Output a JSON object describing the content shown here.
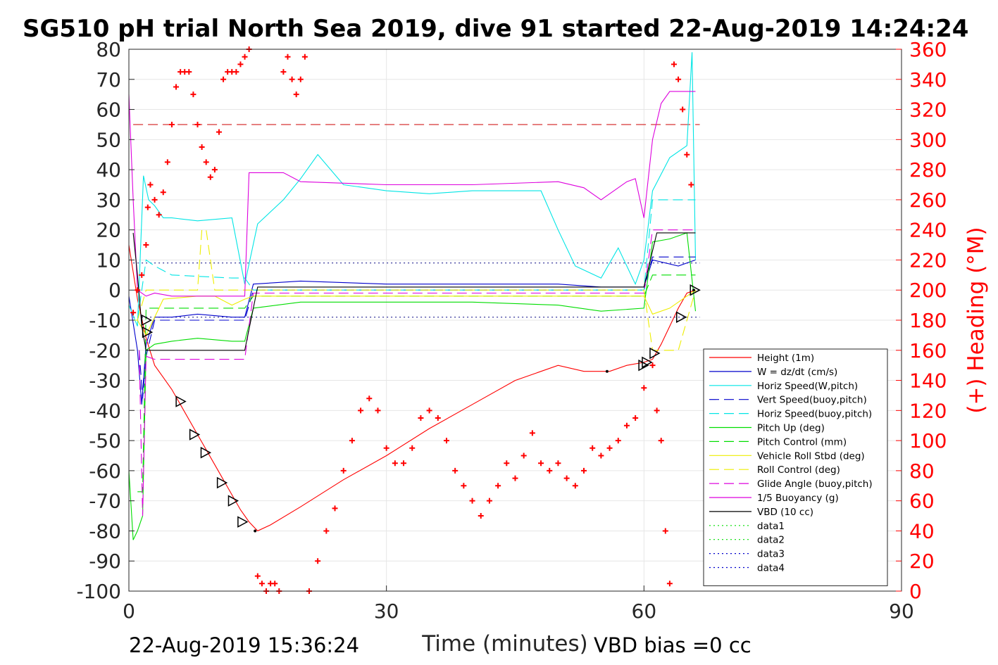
{
  "chart_data": {
    "type": "line",
    "title": "SG510 pH trial North Sea 2019, dive 91 started 22-Aug-2019 14:24:24",
    "xlabel": "Time (minutes)",
    "ylabel_right": "(+) Heading (°M)",
    "xlim": [
      0,
      90
    ],
    "ylim_left": [
      -100,
      80
    ],
    "ylim_right": [
      0,
      360
    ],
    "x_ticks": [
      "0",
      "30",
      "60",
      "90"
    ],
    "y_ticks_left": [
      "80",
      "70",
      "60",
      "50",
      "40",
      "30",
      "20",
      "10",
      "0",
      "-10",
      "-20",
      "-30",
      "-40",
      "-50",
      "-60",
      "-70",
      "-80",
      "-90",
      "-100"
    ],
    "y_ticks_right": [
      "360",
      "340",
      "320",
      "300",
      "280",
      "260",
      "240",
      "220",
      "200",
      "180",
      "160",
      "140",
      "120",
      "100",
      "80",
      "60",
      "40",
      "20",
      "0"
    ],
    "grid": true,
    "legend_position": "bottom-right",
    "footer_left": "22-Aug-2019 15:36:24",
    "footer_right": "VBD bias =0 cc",
    "series": [
      {
        "name": "Height (1m)",
        "color": "#ff0000",
        "style": "solid",
        "x": [
          0.0,
          1.0,
          2.0,
          3.0,
          4.0,
          5.0,
          6.0,
          8.0,
          10.0,
          12.0,
          13.0,
          14.0,
          15.0,
          16.5,
          20,
          25,
          30,
          35,
          40,
          45,
          50,
          53,
          56,
          58,
          60,
          61,
          62,
          63,
          64,
          65,
          66
        ],
        "y": [
          15,
          -3,
          -16,
          -25,
          -29,
          -33,
          -38,
          -48,
          -58,
          -68,
          -73,
          -77,
          -80,
          -78,
          -72,
          -63,
          -55,
          -46,
          -38,
          -30,
          -25,
          -27,
          -27,
          -25,
          -24,
          -23,
          -18,
          -12,
          -6,
          -1,
          0
        ]
      },
      {
        "name": "W = dz/dt (cm/s)",
        "color": "#0000cc",
        "style": "solid",
        "x": [
          0.0,
          1.0,
          1.5,
          2.0,
          3.0,
          5.0,
          8.0,
          12.0,
          13.5,
          14.5,
          20,
          30,
          40,
          50,
          55,
          58,
          60,
          61,
          64,
          66
        ],
        "y": [
          -2,
          -20,
          -38,
          -18,
          -9,
          -9,
          -8,
          -9,
          -9,
          2,
          3,
          2,
          2,
          2,
          1,
          1,
          1,
          10,
          8,
          10
        ]
      },
      {
        "name": "Horiz Speed(W,pitch)",
        "color": "#00e5e5",
        "style": "solid",
        "x": [
          0.0,
          1.0,
          1.7,
          2.3,
          3.0,
          4.0,
          5.0,
          8.0,
          12.0,
          13.5,
          15.0,
          18.0,
          20.0,
          22.0,
          25.0,
          30.0,
          35.0,
          40.0,
          45.0,
          48.0,
          50.0,
          52.0,
          55.0,
          57.0,
          59.0,
          60.0,
          61.0,
          63.0,
          65.0,
          65.6,
          66.0
        ],
        "y": [
          -5,
          -12,
          38,
          30,
          28,
          24,
          24,
          23,
          24,
          2,
          22,
          30,
          37,
          45,
          35,
          33,
          32,
          33,
          33,
          33,
          20,
          8,
          4,
          14,
          2,
          10,
          33,
          44,
          48,
          79,
          10
        ]
      },
      {
        "name": "Vert Speed(buoy,pitch)",
        "color": "#0000cc",
        "style": "dashed",
        "x": [
          1.2,
          1.6,
          2.0,
          3.0,
          12.0,
          13.5,
          14.5,
          60.0,
          61.0,
          66.0
        ],
        "y": [
          -20,
          -36,
          -22,
          -10,
          -10,
          -10,
          0,
          0,
          11,
          11
        ]
      },
      {
        "name": "Horiz Speed(buoy,pitch)",
        "color": "#00e5e5",
        "style": "dashed",
        "x": [
          1.0,
          2.0,
          3.0,
          5.0,
          12.0,
          13.5,
          14.5,
          60.0,
          61.0,
          66.0
        ],
        "y": [
          -10,
          10,
          8,
          5,
          4,
          4,
          0,
          0,
          30,
          30
        ]
      },
      {
        "name": "Pitch Up (deg)",
        "color": "#00dd00",
        "style": "solid",
        "x": [
          0.0,
          0.5,
          1.0,
          1.6,
          2.0,
          3.0,
          5.0,
          8.0,
          12.0,
          13.5,
          14.5,
          20,
          30,
          40,
          50,
          55,
          60,
          61,
          63,
          65,
          66
        ],
        "y": [
          -60,
          -83,
          -80,
          -75,
          -20,
          -18,
          -17,
          -16,
          -17,
          -17,
          -6,
          -4,
          -4,
          -4,
          -5,
          -7,
          -6,
          16,
          17,
          19,
          -7
        ]
      },
      {
        "name": "Pitch Control (mm)",
        "color": "#00dd00",
        "style": "dashed",
        "x": [
          1.0,
          1.6,
          2.0,
          13.5,
          14.5,
          60.0,
          61.0,
          66.0
        ],
        "y": [
          -67,
          -67,
          -6,
          -6,
          -2,
          -2,
          5,
          5
        ]
      },
      {
        "name": "Vehicle Roll Stbd (deg)",
        "color": "#eeee00",
        "style": "solid",
        "x": [
          0.0,
          1.0,
          2.0,
          4.0,
          8.0,
          10.0,
          12.0,
          13.5,
          14.5,
          30,
          60.0,
          61.0,
          63.0,
          65.0,
          66.0
        ],
        "y": [
          -10,
          -10,
          -15,
          -3,
          -2,
          -2,
          -5,
          -3,
          -2,
          -2,
          -2,
          -8,
          -6,
          -2,
          0
        ]
      },
      {
        "name": "Roll Control (deg)",
        "color": "#eeee00",
        "style": "dashed",
        "x": [
          1.0,
          2.0,
          8.0,
          8.5,
          9.0,
          10.0,
          12.0,
          60.0,
          61.0,
          64.0,
          66.0
        ],
        "y": [
          -10,
          0,
          0,
          20,
          20,
          0,
          0,
          0,
          -20,
          -20,
          0
        ]
      },
      {
        "name": "Glide Angle (buoy,pitch)",
        "color": "#dd00dd",
        "style": "dashed",
        "x": [
          1.2,
          1.6,
          2.0,
          3.0,
          13.5,
          14.5,
          60.0,
          61.0,
          66.0
        ],
        "y": [
          -20,
          -75,
          -22,
          -23,
          -23,
          -1,
          -1,
          20,
          20
        ]
      },
      {
        "name": "1/5 Buoyancy (g)",
        "color": "#dd00dd",
        "style": "solid",
        "x": [
          0.0,
          0.5,
          1.0,
          2.0,
          3.0,
          5.0,
          13.5,
          14.0,
          15.0,
          18.0,
          20.0,
          30.0,
          40.0,
          50.0,
          53.0,
          55.0,
          58.0,
          59.0,
          60.0,
          61.0,
          62.0,
          63.0,
          66.0
        ],
        "y": [
          65,
          30,
          0,
          -2,
          -1,
          -2,
          -2,
          39,
          39,
          39,
          36,
          35,
          35,
          36,
          34,
          30,
          36,
          37,
          24,
          50,
          62,
          66,
          66
        ]
      },
      {
        "name": "VBD (10 cc)",
        "color": "#000000",
        "style": "solid",
        "x": [
          0.5,
          1.0,
          1.5,
          2.0,
          13.5,
          15.0,
          60.0,
          61.5,
          66.0
        ],
        "y": [
          19,
          5,
          -12,
          -20,
          -20,
          1,
          1,
          19,
          19
        ]
      },
      {
        "name": "data1",
        "color": "#00dd00",
        "style": "dotted",
        "x": [],
        "y": []
      },
      {
        "name": "data2",
        "color": "#00dd00",
        "style": "dotted",
        "x": [],
        "y": []
      },
      {
        "name": "data3",
        "color": "#0000cc",
        "style": "dotted",
        "x": [],
        "y": []
      },
      {
        "name": "data4",
        "color": "#0000cc",
        "style": "dotted",
        "x": [],
        "y": []
      }
    ],
    "reference_lines": [
      {
        "y": 55,
        "color": "#cc0000",
        "style": "dashed"
      },
      {
        "y": 9,
        "color": "#000080",
        "style": "dotted"
      },
      {
        "y": -9,
        "color": "#000080",
        "style": "dotted"
      }
    ],
    "heading_points": {
      "color": "#ff0000",
      "marker": "+",
      "axis": "right",
      "x": [
        0.5,
        1,
        1.5,
        2,
        2.2,
        2.5,
        3,
        3.5,
        4,
        4.5,
        5,
        5.5,
        6,
        6.5,
        7,
        7.5,
        8,
        8.5,
        9,
        9.5,
        10,
        10.5,
        11,
        11.5,
        12,
        12.5,
        13,
        13.5,
        14,
        15,
        15.5,
        16,
        16.5,
        17,
        17.5,
        18,
        18.5,
        19,
        19.5,
        20,
        20.5,
        21,
        22,
        23,
        24,
        25,
        26,
        27,
        28,
        29,
        30,
        31,
        32,
        33,
        34,
        35,
        36,
        37,
        38,
        39,
        40,
        41,
        42,
        43,
        44,
        45,
        46,
        47,
        48,
        49,
        50,
        51,
        52,
        53,
        54,
        55,
        56,
        57,
        58,
        59,
        60,
        61,
        61.5,
        62,
        62.5,
        63,
        63.5,
        64,
        64.5,
        65,
        65.5
      ],
      "y": [
        185,
        200,
        210,
        230,
        255,
        270,
        260,
        250,
        265,
        285,
        310,
        335,
        345,
        345,
        345,
        330,
        310,
        295,
        285,
        275,
        280,
        305,
        340,
        345,
        345,
        345,
        350,
        355,
        360,
        10,
        5,
        0,
        5,
        5,
        0,
        345,
        355,
        340,
        330,
        340,
        355,
        0,
        20,
        40,
        55,
        80,
        100,
        120,
        128,
        120,
        95,
        85,
        85,
        95,
        115,
        120,
        115,
        100,
        80,
        70,
        60,
        50,
        60,
        70,
        85,
        75,
        90,
        105,
        85,
        80,
        85,
        75,
        70,
        80,
        95,
        90,
        95,
        100,
        110,
        115,
        135,
        150,
        120,
        100,
        40,
        5,
        350,
        340,
        320,
        290,
        270
      ]
    },
    "triangle_markers": {
      "color": "#000000",
      "x": [
        2.0,
        2.1,
        6.0,
        7.6,
        8.9,
        10.8,
        12.1,
        13.2,
        59.9,
        60.3,
        61.2,
        64.3,
        65.9
      ],
      "y": [
        -10,
        -14,
        -37,
        -48,
        -54,
        -64,
        -70,
        -77,
        -25,
        -24,
        -21,
        -9,
        0
      ]
    },
    "dot_markers": {
      "color": "#000000",
      "x": [
        14.7,
        55.7,
        65.8
      ],
      "y": [
        -80,
        -27,
        0
      ]
    }
  }
}
